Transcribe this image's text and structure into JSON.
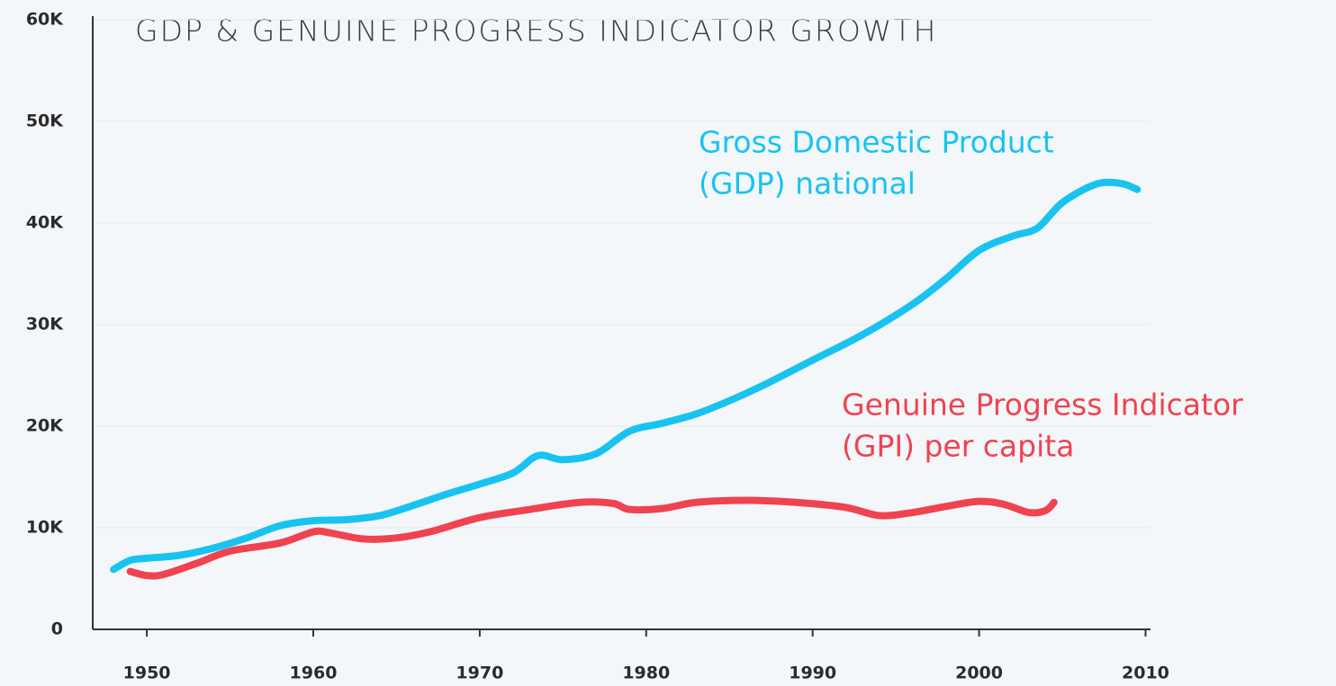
{
  "chart_data": {
    "type": "line",
    "title": "GDP & GENUINE PROGRESS INDICATOR GROWTH",
    "xlim": [
      1946.75,
      2010.3
    ],
    "xticks": [
      1950,
      1960,
      1970,
      1980,
      1990,
      2000,
      2010
    ],
    "ylim": [
      0,
      60000
    ],
    "yticks": [
      0,
      {
        "value": 10000,
        "label": "10K"
      },
      {
        "value": 20000,
        "label": "20K"
      },
      {
        "value": 30000,
        "label": "30K"
      },
      {
        "value": 40000,
        "label": "40K"
      },
      {
        "value": 50000,
        "label": "50K"
      },
      {
        "value": 60000,
        "label": "60K"
      }
    ],
    "grid": true,
    "series": [
      {
        "name": [
          "Gross Domestic Product",
          "(GDP) national"
        ],
        "color": "#19c3f0",
        "x": [
          1948,
          1949,
          1950,
          1952,
          1954,
          1956,
          1958,
          1960,
          1962,
          1964,
          1966,
          1968,
          1970,
          1972,
          1973.5,
          1975,
          1977,
          1979,
          1981,
          1983,
          1985,
          1987,
          1990,
          1993,
          1996,
          1998,
          2000,
          2002,
          2003.5,
          2005,
          2007,
          2008.5,
          2009.5
        ],
        "values": [
          5900,
          6800,
          7000,
          7300,
          8000,
          9000,
          10200,
          10700,
          10800,
          11200,
          12200,
          13300,
          14300,
          15400,
          17100,
          16700,
          17300,
          19500,
          20300,
          21200,
          22500,
          24000,
          26500,
          29000,
          32000,
          34500,
          37300,
          38700,
          39500,
          42000,
          43800,
          43900,
          43300
        ]
      },
      {
        "name": [
          "Genuine Progress Indicator",
          "(GPI) per capita"
        ],
        "color": "#ef4350",
        "x": [
          1949,
          1950,
          1951,
          1953,
          1955,
          1958,
          1960,
          1961,
          1963,
          1965,
          1967,
          1970,
          1973,
          1976,
          1978,
          1979,
          1981,
          1983,
          1986,
          1989,
          1992,
          1994,
          1996,
          1998,
          2000,
          2001.5,
          2003,
          2004,
          2004.5
        ],
        "values": [
          5700,
          5300,
          5400,
          6500,
          7700,
          8500,
          9600,
          9500,
          8900,
          9000,
          9600,
          11000,
          11800,
          12500,
          12400,
          11800,
          11900,
          12500,
          12700,
          12500,
          12000,
          11200,
          11500,
          12100,
          12600,
          12300,
          11500,
          11700,
          12500
        ]
      }
    ]
  }
}
